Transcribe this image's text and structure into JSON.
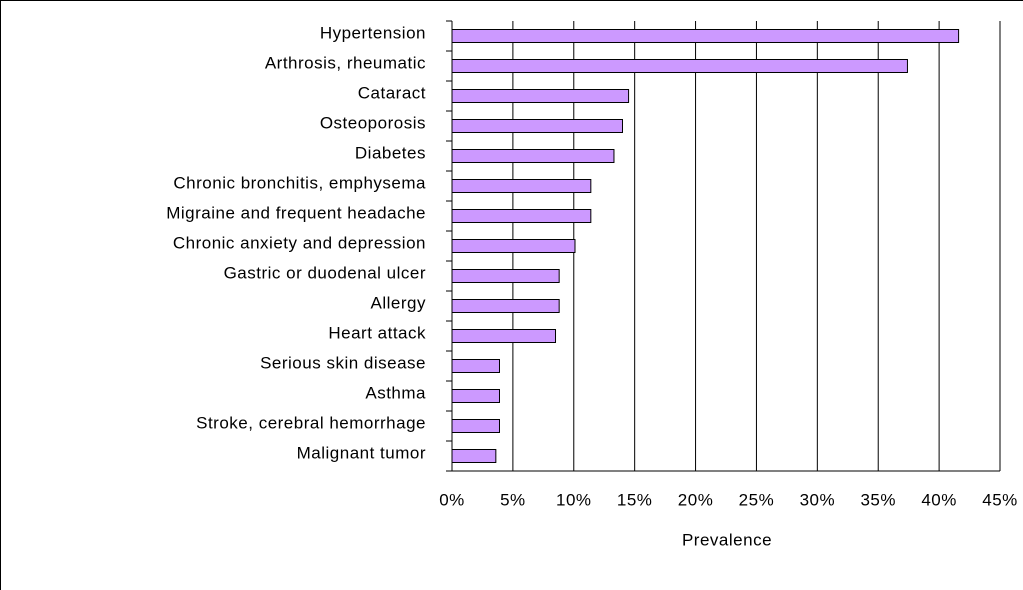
{
  "chart_data": {
    "type": "bar",
    "orientation": "horizontal",
    "categories": [
      "Hypertension",
      "Arthrosis, rheumatic",
      "Cataract",
      "Osteoporosis",
      "Diabetes",
      "Chronic bronchitis, emphysema",
      "Migraine and frequent headache",
      "Chronic anxiety and depression",
      "Gastric or duodenal ulcer",
      "Allergy",
      "Heart attack",
      "Serious skin disease",
      "Asthma",
      "Stroke, cerebral hemorrhage",
      "Malignant tumor"
    ],
    "values": [
      41.6,
      37.4,
      14.5,
      14.0,
      13.3,
      11.4,
      11.4,
      10.1,
      8.8,
      8.8,
      8.5,
      3.9,
      3.9,
      3.9,
      3.6
    ],
    "color": "#cc99ff",
    "xlabel": "Prevalence",
    "xlim": [
      0,
      45
    ],
    "xticks": [
      {
        "value": 0,
        "label": "0%"
      },
      {
        "value": 5,
        "label": "5%"
      },
      {
        "value": 10,
        "label": "10%"
      },
      {
        "value": 15,
        "label": "15%"
      },
      {
        "value": 20,
        "label": "20%"
      },
      {
        "value": 25,
        "label": "25%"
      },
      {
        "value": 30,
        "label": "30%"
      },
      {
        "value": 35,
        "label": "35%"
      },
      {
        "value": 40,
        "label": "40%"
      },
      {
        "value": 45,
        "label": "45%"
      }
    ],
    "grid": true
  }
}
